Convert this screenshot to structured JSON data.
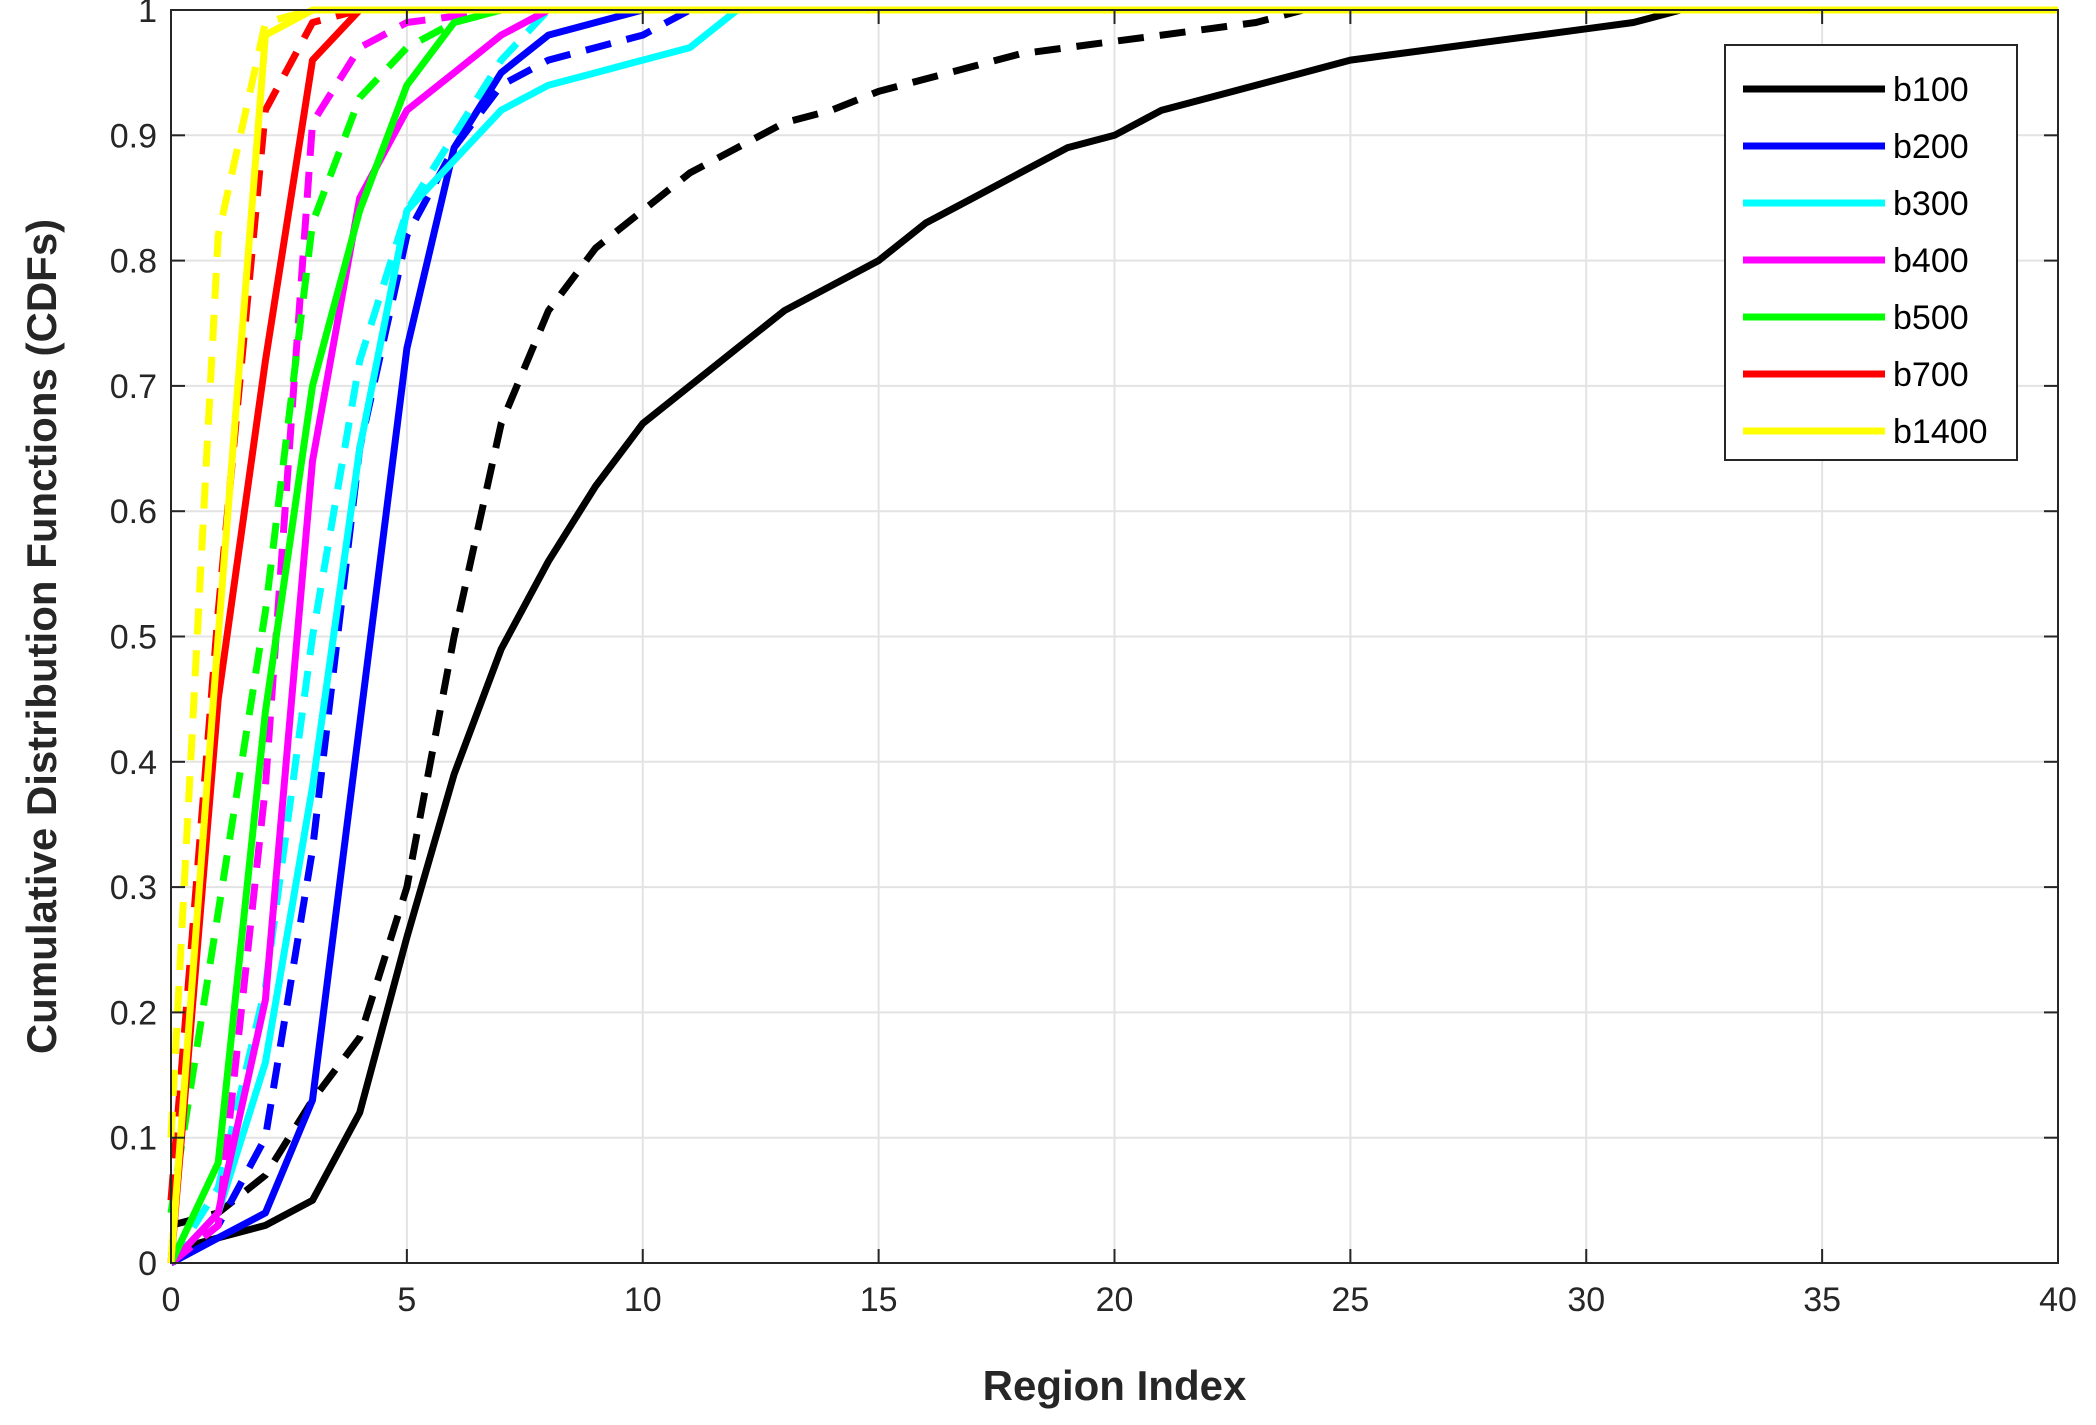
{
  "chart_data": {
    "type": "line",
    "title": "",
    "xlabel": "Region Index",
    "ylabel": "Cumulative Distribution Functions (CDFs)",
    "xlim": [
      0,
      40
    ],
    "ylim": [
      0,
      1
    ],
    "xticks": [
      0,
      5,
      10,
      15,
      20,
      25,
      30,
      35,
      40
    ],
    "yticks": [
      0,
      0.1,
      0.2,
      0.3,
      0.4,
      0.5,
      0.6,
      0.7,
      0.8,
      0.9,
      1
    ],
    "grid": true,
    "legend_position": "top-right",
    "legend": [
      "b100",
      "b200",
      "b300",
      "b400",
      "b500",
      "b700",
      "b1400"
    ],
    "colors": {
      "b100": "#000000",
      "b200": "#0000ff",
      "b300": "#00ffff",
      "b400": "#ff00ff",
      "b500": "#00ff00",
      "b700": "#ff0000",
      "b1400": "#ffff00"
    },
    "series": [
      {
        "name": "b100",
        "style": "solid",
        "x": [
          0,
          1,
          2,
          3,
          4,
          5,
          6,
          7,
          8,
          9,
          10,
          11,
          12,
          13,
          14,
          15,
          16,
          17,
          18,
          19,
          20,
          21,
          22,
          23,
          24,
          25,
          26,
          27,
          28,
          29,
          30,
          31,
          32,
          40
        ],
        "y": [
          0.01,
          0.02,
          0.03,
          0.05,
          0.12,
          0.26,
          0.39,
          0.49,
          0.56,
          0.62,
          0.67,
          0.7,
          0.73,
          0.76,
          0.78,
          0.8,
          0.83,
          0.85,
          0.87,
          0.89,
          0.9,
          0.92,
          0.93,
          0.94,
          0.95,
          0.96,
          0.965,
          0.97,
          0.975,
          0.98,
          0.985,
          0.99,
          1.0,
          1.0
        ]
      },
      {
        "name": "b100",
        "style": "dashed",
        "x": [
          0,
          1,
          2,
          3,
          4,
          5,
          6,
          7,
          8,
          9,
          10,
          11,
          12,
          13,
          14,
          15,
          16,
          17,
          18,
          19,
          20,
          21,
          22,
          23,
          24,
          40
        ],
        "y": [
          0.03,
          0.04,
          0.07,
          0.13,
          0.18,
          0.3,
          0.5,
          0.67,
          0.76,
          0.81,
          0.84,
          0.87,
          0.89,
          0.91,
          0.92,
          0.935,
          0.945,
          0.955,
          0.965,
          0.97,
          0.975,
          0.98,
          0.985,
          0.99,
          1.0,
          1.0
        ]
      },
      {
        "name": "b200",
        "style": "solid",
        "x": [
          0,
          1,
          2,
          3,
          4,
          5,
          6,
          7,
          8,
          9,
          10,
          11,
          40
        ],
        "y": [
          0.0,
          0.02,
          0.04,
          0.13,
          0.43,
          0.73,
          0.89,
          0.95,
          0.98,
          0.99,
          1.0,
          1.0,
          1.0
        ]
      },
      {
        "name": "b200",
        "style": "dashed",
        "x": [
          0,
          1,
          2,
          3,
          4,
          5,
          6,
          7,
          8,
          9,
          10,
          11,
          40
        ],
        "y": [
          0.0,
          0.03,
          0.1,
          0.33,
          0.65,
          0.82,
          0.89,
          0.94,
          0.96,
          0.97,
          0.98,
          1.0,
          1.0
        ]
      },
      {
        "name": "b300",
        "style": "solid",
        "x": [
          0,
          1,
          2,
          3,
          4,
          5,
          6,
          7,
          8,
          9,
          10,
          11,
          12,
          40
        ],
        "y": [
          0.0,
          0.04,
          0.16,
          0.38,
          0.65,
          0.84,
          0.88,
          0.92,
          0.94,
          0.95,
          0.96,
          0.97,
          1.0,
          1.0
        ]
      },
      {
        "name": "b300",
        "style": "dashed",
        "x": [
          0,
          1,
          2,
          3,
          4,
          5,
          6,
          7,
          8,
          40
        ],
        "y": [
          0.0,
          0.06,
          0.22,
          0.5,
          0.72,
          0.84,
          0.9,
          0.96,
          1.0,
          1.0
        ]
      },
      {
        "name": "b400",
        "style": "solid",
        "x": [
          0,
          1,
          2,
          3,
          4,
          5,
          6,
          7,
          8,
          40
        ],
        "y": [
          0.0,
          0.04,
          0.21,
          0.64,
          0.85,
          0.92,
          0.95,
          0.98,
          1.0,
          1.0
        ]
      },
      {
        "name": "b400",
        "style": "dashed",
        "x": [
          0,
          1,
          2,
          3,
          4,
          5,
          6,
          7,
          40
        ],
        "y": [
          0.0,
          0.03,
          0.38,
          0.91,
          0.97,
          0.99,
          0.995,
          1.0,
          1.0
        ]
      },
      {
        "name": "b500",
        "style": "solid",
        "x": [
          0,
          1,
          2,
          3,
          4,
          5,
          6,
          7,
          40
        ],
        "y": [
          0.0,
          0.08,
          0.44,
          0.7,
          0.84,
          0.94,
          0.99,
          1.0,
          1.0
        ]
      },
      {
        "name": "b500",
        "style": "dashed",
        "x": [
          0,
          1,
          2,
          3,
          4,
          5,
          6,
          7,
          40
        ],
        "y": [
          0.04,
          0.28,
          0.52,
          0.83,
          0.93,
          0.97,
          0.99,
          1.0,
          1.0
        ]
      },
      {
        "name": "b700",
        "style": "solid",
        "x": [
          0,
          1,
          2,
          3,
          4,
          5,
          40
        ],
        "y": [
          0.0,
          0.45,
          0.72,
          0.96,
          1.0,
          1.0,
          1.0
        ]
      },
      {
        "name": "b700",
        "style": "dashed",
        "x": [
          0,
          1,
          2,
          3,
          4,
          40
        ],
        "y": [
          0.05,
          0.52,
          0.92,
          0.99,
          1.0,
          1.0
        ]
      },
      {
        "name": "b1400",
        "style": "solid",
        "x": [
          0,
          1,
          2,
          3,
          40
        ],
        "y": [
          0.0,
          0.5,
          0.98,
          1.0,
          1.0
        ]
      },
      {
        "name": "b1400",
        "style": "dashed",
        "x": [
          0,
          1,
          2,
          3,
          40
        ],
        "y": [
          0.1,
          0.82,
          0.99,
          1.0,
          1.0
        ]
      }
    ]
  }
}
